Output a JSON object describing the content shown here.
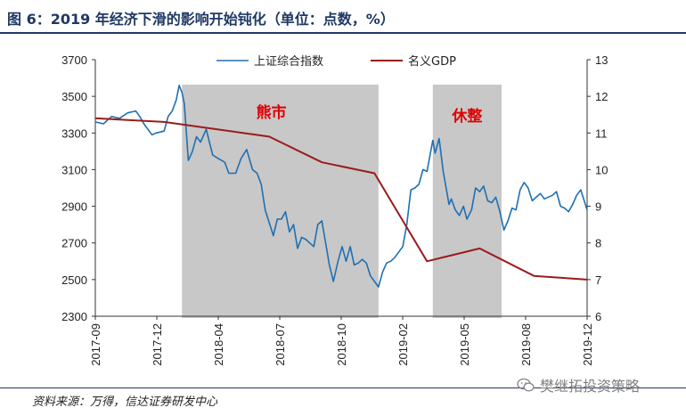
{
  "header": {
    "title": "图 6：2019 年经济下滑的影响开始钝化（单位：点数，%）"
  },
  "footer": {
    "source": "资料来源：万得，信达证券研发中心",
    "watermark": "樊继拓投资策略",
    "watermark_icon": "wechat-icon"
  },
  "colors": {
    "index_line": "#1f6fb2",
    "gdp_line": "#9b1b1b",
    "shade": "#c8c8c8",
    "annotation": "#e00000",
    "title": "#1f3864"
  },
  "chart_data": {
    "type": "line",
    "legend_position": "top-center",
    "x_tick_labels": [
      "2017-09",
      "2017-12",
      "2018-04",
      "2018-07",
      "2018-10",
      "2019-02",
      "2019-05",
      "2019-08",
      "2019-12"
    ],
    "x_range": [
      "2017-09-01",
      "2019-12-31"
    ],
    "y_left": {
      "range": [
        2300,
        3700
      ],
      "ticks": [
        2300,
        2500,
        2700,
        2900,
        3100,
        3300,
        3500,
        3700
      ]
    },
    "y_right": {
      "range": [
        6,
        13
      ],
      "ticks": [
        6,
        7,
        8,
        9,
        10,
        11,
        12,
        13
      ]
    },
    "grid": false,
    "shaded_regions": [
      {
        "label": "熊市",
        "start": "2018-01-29",
        "end": "2019-01-04"
      },
      {
        "label": "休整",
        "start": "2019-04-08",
        "end": "2019-08-05"
      }
    ],
    "series": [
      {
        "name": "上证综合指数",
        "axis": "left",
        "points": [
          [
            "2017-09-01",
            3360
          ],
          [
            "2017-09-15",
            3350
          ],
          [
            "2017-09-29",
            3390
          ],
          [
            "2017-10-13",
            3380
          ],
          [
            "2017-10-27",
            3410
          ],
          [
            "2017-11-10",
            3420
          ],
          [
            "2017-11-17",
            3390
          ],
          [
            "2017-11-24",
            3350
          ],
          [
            "2017-12-01",
            3320
          ],
          [
            "2017-12-08",
            3290
          ],
          [
            "2017-12-15",
            3300
          ],
          [
            "2017-12-29",
            3310
          ],
          [
            "2018-01-05",
            3390
          ],
          [
            "2018-01-12",
            3420
          ],
          [
            "2018-01-19",
            3480
          ],
          [
            "2018-01-24",
            3560
          ],
          [
            "2018-01-29",
            3520
          ],
          [
            "2018-02-02",
            3460
          ],
          [
            "2018-02-09",
            3150
          ],
          [
            "2018-02-16",
            3200
          ],
          [
            "2018-02-23",
            3280
          ],
          [
            "2018-03-02",
            3250
          ],
          [
            "2018-03-12",
            3320
          ],
          [
            "2018-03-23",
            3180
          ],
          [
            "2018-04-02",
            3160
          ],
          [
            "2018-04-13",
            3140
          ],
          [
            "2018-04-20",
            3080
          ],
          [
            "2018-05-02",
            3080
          ],
          [
            "2018-05-11",
            3160
          ],
          [
            "2018-05-21",
            3210
          ],
          [
            "2018-05-31",
            3100
          ],
          [
            "2018-06-08",
            3080
          ],
          [
            "2018-06-15",
            3020
          ],
          [
            "2018-06-22",
            2880
          ],
          [
            "2018-07-02",
            2780
          ],
          [
            "2018-07-06",
            2740
          ],
          [
            "2018-07-13",
            2830
          ],
          [
            "2018-07-20",
            2830
          ],
          [
            "2018-07-27",
            2870
          ],
          [
            "2018-08-03",
            2760
          ],
          [
            "2018-08-10",
            2800
          ],
          [
            "2018-08-17",
            2670
          ],
          [
            "2018-08-24",
            2730
          ],
          [
            "2018-08-31",
            2720
          ],
          [
            "2018-09-07",
            2700
          ],
          [
            "2018-09-14",
            2680
          ],
          [
            "2018-09-21",
            2800
          ],
          [
            "2018-09-28",
            2820
          ],
          [
            "2018-10-11",
            2580
          ],
          [
            "2018-10-18",
            2490
          ],
          [
            "2018-10-26",
            2600
          ],
          [
            "2018-11-02",
            2680
          ],
          [
            "2018-11-09",
            2600
          ],
          [
            "2018-11-16",
            2680
          ],
          [
            "2018-11-23",
            2580
          ],
          [
            "2018-11-30",
            2590
          ],
          [
            "2018-12-07",
            2610
          ],
          [
            "2018-12-14",
            2590
          ],
          [
            "2018-12-21",
            2520
          ],
          [
            "2018-12-28",
            2490
          ],
          [
            "2019-01-04",
            2460
          ],
          [
            "2019-01-11",
            2540
          ],
          [
            "2019-01-18",
            2590
          ],
          [
            "2019-01-25",
            2600
          ],
          [
            "2019-02-01",
            2620
          ],
          [
            "2019-02-15",
            2680
          ],
          [
            "2019-02-22",
            2800
          ],
          [
            "2019-03-01",
            2990
          ],
          [
            "2019-03-08",
            3000
          ],
          [
            "2019-03-15",
            3020
          ],
          [
            "2019-03-22",
            3100
          ],
          [
            "2019-03-29",
            3090
          ],
          [
            "2019-04-08",
            3260
          ],
          [
            "2019-04-12",
            3190
          ],
          [
            "2019-04-19",
            3270
          ],
          [
            "2019-04-26",
            3090
          ],
          [
            "2019-05-06",
            2910
          ],
          [
            "2019-05-10",
            2940
          ],
          [
            "2019-05-17",
            2880
          ],
          [
            "2019-05-24",
            2850
          ],
          [
            "2019-05-31",
            2900
          ],
          [
            "2019-06-06",
            2830
          ],
          [
            "2019-06-14",
            2880
          ],
          [
            "2019-06-21",
            3000
          ],
          [
            "2019-06-28",
            2980
          ],
          [
            "2019-07-05",
            3010
          ],
          [
            "2019-07-12",
            2930
          ],
          [
            "2019-07-19",
            2920
          ],
          [
            "2019-07-26",
            2950
          ],
          [
            "2019-08-02",
            2870
          ],
          [
            "2019-08-09",
            2770
          ],
          [
            "2019-08-16",
            2820
          ],
          [
            "2019-08-23",
            2890
          ],
          [
            "2019-08-30",
            2880
          ],
          [
            "2019-09-06",
            2990
          ],
          [
            "2019-09-13",
            3030
          ],
          [
            "2019-09-20",
            3000
          ],
          [
            "2019-09-27",
            2930
          ],
          [
            "2019-10-11",
            2970
          ],
          [
            "2019-10-18",
            2940
          ],
          [
            "2019-10-25",
            2950
          ],
          [
            "2019-11-01",
            2960
          ],
          [
            "2019-11-08",
            2980
          ],
          [
            "2019-11-15",
            2900
          ],
          [
            "2019-11-22",
            2890
          ],
          [
            "2019-11-29",
            2870
          ],
          [
            "2019-12-06",
            2910
          ],
          [
            "2019-12-13",
            2960
          ],
          [
            "2019-12-20",
            2990
          ],
          [
            "2019-12-31",
            2880
          ]
        ]
      },
      {
        "name": "名义GDP",
        "axis": "right",
        "points": [
          [
            "2017-09-01",
            11.4
          ],
          [
            "2017-12-29",
            11.3
          ],
          [
            "2018-06-29",
            10.9
          ],
          [
            "2018-09-28",
            10.2
          ],
          [
            "2018-12-28",
            9.9
          ],
          [
            "2019-03-29",
            7.5
          ],
          [
            "2019-06-28",
            7.85
          ],
          [
            "2019-09-30",
            7.1
          ],
          [
            "2019-12-31",
            7.0
          ]
        ]
      }
    ]
  }
}
